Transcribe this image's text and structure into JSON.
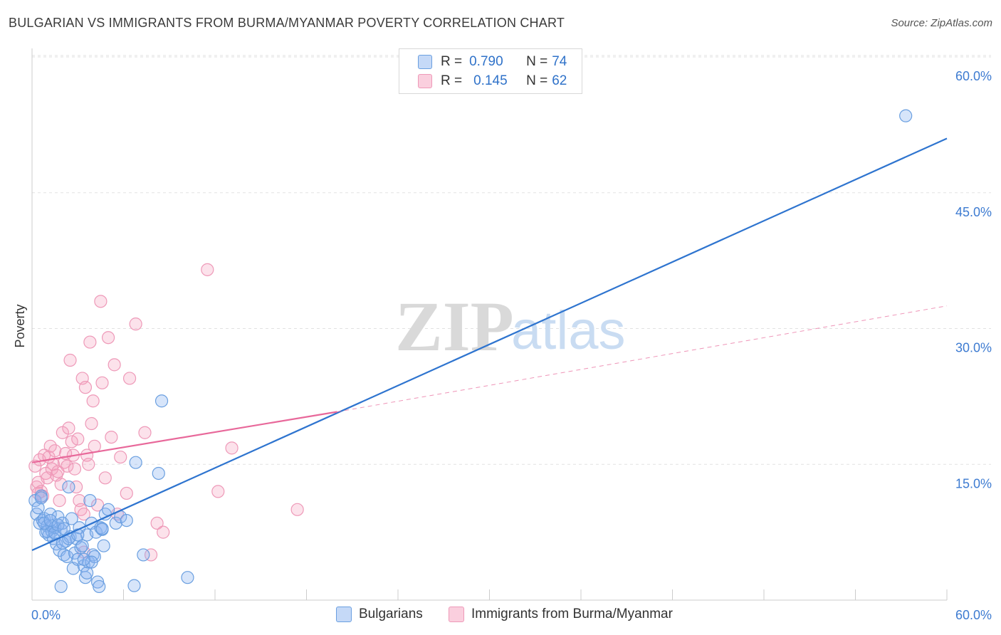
{
  "title": "BULGARIAN VS IMMIGRANTS FROM BURMA/MYANMAR POVERTY CORRELATION CHART",
  "source": "Source: ZipAtlas.com",
  "watermark": {
    "zip": "ZIP",
    "atlas": "atlas"
  },
  "legend_top": [
    {
      "r_label": "R =",
      "r_value": "0.790",
      "n_label": "N =",
      "n_value": "74"
    },
    {
      "r_label": "R =",
      "r_value": "0.145",
      "n_label": "N =",
      "n_value": "62"
    }
  ],
  "legend_bottom": [
    "Bulgarians",
    "Immigrants from Burma/Myanmar"
  ],
  "colors": {
    "blue": "#2e74cf",
    "blue_fill": "rgba(140,180,240,0.35)",
    "blue_stroke": "#6a9fe0",
    "pink": "#e8689a",
    "pink_fill": "rgba(245,160,190,0.30)",
    "pink_stroke": "#ee99b8",
    "axis_label": "#3d7bd1"
  },
  "chart_data": {
    "type": "scatter",
    "title": "BULGARIAN VS IMMIGRANTS FROM BURMA/MYANMAR POVERTY CORRELATION CHART",
    "xlabel": "",
    "ylabel": "Poverty",
    "xlim": [
      0,
      60
    ],
    "ylim": [
      0,
      60
    ],
    "x_tick_labels": [
      "0.0%",
      "60.0%"
    ],
    "y_ticks": [
      15,
      30,
      45,
      60
    ],
    "y_tick_labels": [
      "15.0%",
      "30.0%",
      "45.0%",
      "60.0%"
    ],
    "series": [
      {
        "name": "Bulgarians",
        "R": 0.79,
        "N": 74,
        "trend": {
          "x": [
            0,
            60
          ],
          "y": [
            5.5,
            51
          ]
        },
        "points": [
          [
            0.2,
            11
          ],
          [
            0.3,
            9.5
          ],
          [
            0.4,
            10.2
          ],
          [
            0.5,
            8.5
          ],
          [
            0.6,
            11.5
          ],
          [
            0.7,
            8.8
          ],
          [
            0.8,
            9
          ],
          [
            0.9,
            7.5
          ],
          [
            1.0,
            8.2
          ],
          [
            1.1,
            7.2
          ],
          [
            1.2,
            9.5
          ],
          [
            1.3,
            7.6
          ],
          [
            1.4,
            6.8
          ],
          [
            1.5,
            8
          ],
          [
            1.6,
            6.2
          ],
          [
            1.7,
            9.2
          ],
          [
            1.8,
            5.5
          ],
          [
            1.9,
            7.8
          ],
          [
            2.0,
            8.5
          ],
          [
            2.1,
            5
          ],
          [
            2.2,
            6.5
          ],
          [
            2.3,
            4.8
          ],
          [
            2.4,
            12.5
          ],
          [
            2.5,
            7
          ],
          [
            2.6,
            9
          ],
          [
            2.7,
            3.5
          ],
          [
            2.8,
            5.2
          ],
          [
            2.9,
            6.8
          ],
          [
            3.0,
            4.5
          ],
          [
            3.1,
            8
          ],
          [
            3.2,
            5.8
          ],
          [
            3.3,
            6
          ],
          [
            3.4,
            3.8
          ],
          [
            3.5,
            2.5
          ],
          [
            3.6,
            7.2
          ],
          [
            3.7,
            4.2
          ],
          [
            3.8,
            11
          ],
          [
            3.9,
            8.5
          ],
          [
            4.0,
            5
          ],
          [
            4.1,
            4.8
          ],
          [
            4.2,
            7.5
          ],
          [
            4.3,
            2
          ],
          [
            4.4,
            1.5
          ],
          [
            4.5,
            8
          ],
          [
            4.6,
            7.8
          ],
          [
            4.7,
            6
          ],
          [
            4.8,
            9.5
          ],
          [
            5.0,
            10
          ],
          [
            5.5,
            8.5
          ],
          [
            5.8,
            9.2
          ],
          [
            6.2,
            8.8
          ],
          [
            6.7,
            1.6
          ],
          [
            6.8,
            15.2
          ],
          [
            7.3,
            5
          ],
          [
            8.5,
            22
          ],
          [
            8.3,
            14
          ],
          [
            10.2,
            2.5
          ],
          [
            0.6,
            11.3
          ],
          [
            1.0,
            7.6
          ],
          [
            1.3,
            8.2
          ],
          [
            0.8,
            8.5
          ],
          [
            1.5,
            7.4
          ],
          [
            2.0,
            6.3
          ],
          [
            2.4,
            6.8
          ],
          [
            3.0,
            7.2
          ],
          [
            3.6,
            3.0
          ],
          [
            3.9,
            4.2
          ],
          [
            1.2,
            8.8
          ],
          [
            1.7,
            8.3
          ],
          [
            2.1,
            7.9
          ],
          [
            57.3,
            53.5
          ],
          [
            3.4,
            4.5
          ],
          [
            1.9,
            1.5
          ],
          [
            4.6,
            7.9
          ]
        ]
      },
      {
        "name": "Immigrants from Burma/Myanmar",
        "R": 0.145,
        "N": 62,
        "trend": {
          "x": [
            0,
            20
          ],
          "y": [
            15.2,
            20.8
          ]
        },
        "trend_dashed": {
          "x": [
            20,
            60
          ],
          "y": [
            20.8,
            32.5
          ]
        },
        "points": [
          [
            0.2,
            14.8
          ],
          [
            0.3,
            12.5
          ],
          [
            0.4,
            13
          ],
          [
            0.5,
            15.5
          ],
          [
            0.6,
            12
          ],
          [
            0.7,
            11.5
          ],
          [
            0.8,
            16
          ],
          [
            0.9,
            14
          ],
          [
            1.0,
            13.5
          ],
          [
            1.1,
            15.8
          ],
          [
            1.2,
            17
          ],
          [
            1.3,
            14.5
          ],
          [
            1.4,
            15
          ],
          [
            1.5,
            16.5
          ],
          [
            1.6,
            13.8
          ],
          [
            1.7,
            14.2
          ],
          [
            1.8,
            11
          ],
          [
            1.9,
            12.8
          ],
          [
            2.0,
            18.5
          ],
          [
            2.1,
            15.2
          ],
          [
            2.2,
            16.2
          ],
          [
            2.3,
            14.8
          ],
          [
            2.4,
            19
          ],
          [
            2.5,
            26.5
          ],
          [
            2.6,
            17.5
          ],
          [
            2.7,
            16
          ],
          [
            2.8,
            14.5
          ],
          [
            2.9,
            12.5
          ],
          [
            3.0,
            17.8
          ],
          [
            3.1,
            11
          ],
          [
            3.2,
            10
          ],
          [
            3.3,
            24.5
          ],
          [
            3.4,
            9.5
          ],
          [
            3.5,
            23.5
          ],
          [
            3.6,
            16
          ],
          [
            3.7,
            15
          ],
          [
            3.8,
            28.5
          ],
          [
            3.9,
            19.5
          ],
          [
            4.0,
            22
          ],
          [
            4.1,
            17
          ],
          [
            4.3,
            10.5
          ],
          [
            4.5,
            33
          ],
          [
            4.6,
            24
          ],
          [
            4.8,
            13.5
          ],
          [
            5.0,
            29
          ],
          [
            5.2,
            18
          ],
          [
            5.4,
            26
          ],
          [
            5.6,
            9.5
          ],
          [
            5.8,
            15.8
          ],
          [
            6.2,
            11.8
          ],
          [
            6.4,
            24.5
          ],
          [
            6.8,
            30.5
          ],
          [
            7.4,
            18.5
          ],
          [
            7.8,
            5
          ],
          [
            8.2,
            8.5
          ],
          [
            8.6,
            7.5
          ],
          [
            11.5,
            36.5
          ],
          [
            12.2,
            12
          ],
          [
            13.1,
            16.8
          ],
          [
            17.4,
            10
          ],
          [
            0.4,
            11.8
          ],
          [
            3.4,
            5.3
          ]
        ]
      }
    ]
  }
}
